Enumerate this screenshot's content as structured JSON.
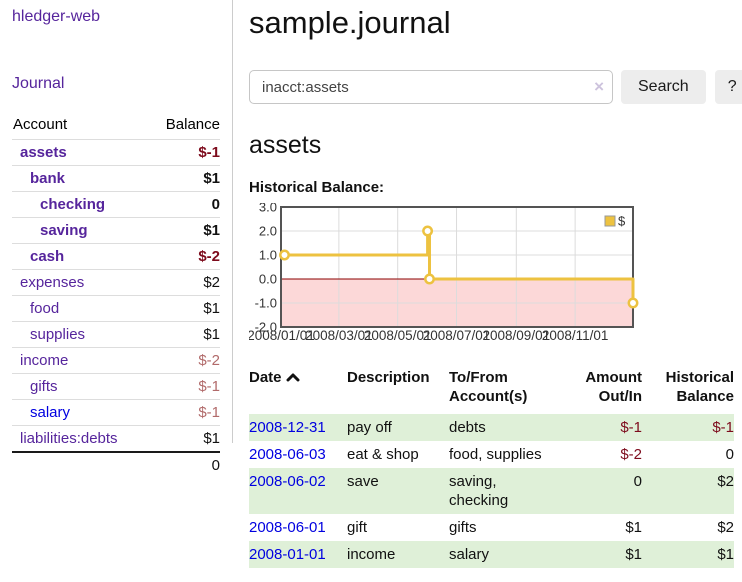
{
  "colors": {
    "link_purple": "#56259c",
    "link_blue": "#0000e0",
    "negative_strong": "#7d0b1c",
    "negative_soft": "#b16a6a",
    "row_green": "#dff0d8",
    "chart_line": "#edc240",
    "chart_negative_fill": "#fcd8d8",
    "chart_zero_line": "#8b0000"
  },
  "sidebar": {
    "brand": "hledger-web",
    "journal_link": "Journal",
    "table": {
      "account_header": "Account",
      "balance_header": "Balance",
      "rows": [
        {
          "account": "assets",
          "balance": "$-1",
          "depth": 1,
          "bold": true,
          "balance_class": "neg-strong"
        },
        {
          "account": "bank",
          "balance": "$1",
          "depth": 2,
          "bold": true,
          "balance_class": ""
        },
        {
          "account": "checking",
          "balance": "0",
          "depth": 3,
          "bold": true,
          "balance_class": ""
        },
        {
          "account": "saving",
          "balance": "$1",
          "depth": 3,
          "bold": true,
          "balance_class": ""
        },
        {
          "account": "cash",
          "balance": "$-2",
          "depth": 2,
          "bold": true,
          "balance_class": "neg-strong"
        },
        {
          "account": "expenses",
          "balance": "$2",
          "depth": 1,
          "bold": false,
          "balance_class": ""
        },
        {
          "account": "food",
          "balance": "$1",
          "depth": 2,
          "bold": false,
          "balance_class": ""
        },
        {
          "account": "supplies",
          "balance": "$1",
          "depth": 2,
          "bold": false,
          "balance_class": ""
        },
        {
          "account": "income",
          "balance": "$-2",
          "depth": 1,
          "bold": false,
          "balance_class": "neg-soft"
        },
        {
          "account": "gifts",
          "balance": "$-1",
          "depth": 2,
          "bold": false,
          "balance_class": "neg-soft"
        },
        {
          "account": "salary",
          "balance": "$-1",
          "depth": 2,
          "bold": false,
          "balance_class": "neg-soft",
          "link_color": "blue"
        },
        {
          "account": "liabilities:debts",
          "balance": "$1",
          "depth": 1,
          "bold": false,
          "balance_class": ""
        }
      ],
      "total": "0"
    }
  },
  "header": {
    "title": "sample.journal"
  },
  "search": {
    "value": "inacct:assets",
    "clear_icon": "×",
    "button": "Search",
    "help_button": "?"
  },
  "account_page": {
    "heading": "assets",
    "chart_label": "Historical Balance:"
  },
  "chart_data": {
    "type": "line",
    "title": "Historical Balance",
    "legend": "$",
    "legend_position": "top-right",
    "grid": true,
    "xlim": [
      "2008-01-01",
      "2008-12-31"
    ],
    "ylim": [
      -2.0,
      3.0
    ],
    "y_ticks": [
      3.0,
      2.0,
      1.0,
      0.0,
      -1.0,
      -2.0
    ],
    "x_ticks": [
      "2008/01/01",
      "2008/03/01",
      "2008/05/01",
      "2008/07/01",
      "2008/09/01",
      "2008/11/01"
    ],
    "series": [
      {
        "name": "$",
        "step": true,
        "points": [
          [
            "2008-01-01",
            1
          ],
          [
            "2008-06-01",
            2
          ],
          [
            "2008-06-03",
            0
          ],
          [
            "2008-12-31",
            -1
          ]
        ]
      }
    ]
  },
  "register_table": {
    "headers": {
      "date": "Date",
      "description": "Description",
      "account": "To/From Account(s)",
      "amount": "Amount Out/In",
      "balance": "Historical Balance"
    },
    "rows": [
      {
        "date": "2008-12-31",
        "description": "pay off",
        "account": "debts",
        "amount": "$-1",
        "balance": "$-1",
        "amount_class": "neg-strong",
        "balance_class": "neg-strong"
      },
      {
        "date": "2008-06-03",
        "description": "eat & shop",
        "account": "food, supplies",
        "amount": "$-2",
        "balance": "0",
        "amount_class": "neg-strong",
        "balance_class": ""
      },
      {
        "date": "2008-06-02",
        "description": "save",
        "account": "saving, checking",
        "amount": "0",
        "balance": "$2",
        "amount_class": "",
        "balance_class": ""
      },
      {
        "date": "2008-06-01",
        "description": "gift",
        "account": "gifts",
        "amount": "$1",
        "balance": "$2",
        "amount_class": "",
        "balance_class": ""
      },
      {
        "date": "2008-01-01",
        "description": "income",
        "account": "salary",
        "amount": "$1",
        "balance": "$1",
        "amount_class": "",
        "balance_class": ""
      }
    ]
  }
}
